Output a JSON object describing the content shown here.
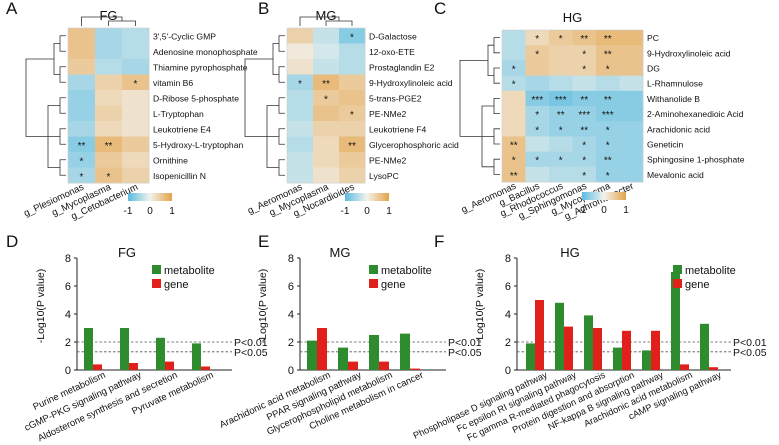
{
  "colors": {
    "low": "#5bbbe0",
    "mid": "#f2f2ec",
    "high": "#e3a34a",
    "metabolite_bar": "#2e8b2e",
    "gene_bar": "#e0201b",
    "frame": "#cfcfcf",
    "dend": "#333333"
  },
  "heatmap_legend": {
    "ticks": [
      "-1",
      "0",
      "1"
    ]
  },
  "chart_data": [
    {
      "type": "heatmap",
      "panel": "A",
      "title": "FG",
      "columns": [
        "g_Plesiomonas",
        "g_Mycoplasma",
        "g_Cetobacterium"
      ],
      "rows": [
        "3',5'-Cyclic GMP",
        "Adenosine monophosphate",
        "Thiamine pyrophosphate",
        "vitamin B6",
        "D-Ribose 5-phosphate",
        "L-Tryptophan",
        "Leukotriene E4",
        "5-Hydroxy-L-tryptophan",
        "Ornithine",
        "Isopenicillin N"
      ],
      "values": [
        [
          0.6,
          -0.5,
          -0.4
        ],
        [
          0.6,
          -0.5,
          -0.4
        ],
        [
          0.5,
          -0.4,
          -0.5
        ],
        [
          -0.5,
          0.4,
          0.6
        ],
        [
          -0.6,
          0.3,
          0.2
        ],
        [
          -0.6,
          0.4,
          0.2
        ],
        [
          -0.5,
          0.3,
          0.2
        ],
        [
          -0.7,
          0.7,
          0.5
        ],
        [
          -0.6,
          0.5,
          0.3
        ],
        [
          -0.5,
          0.6,
          0.4
        ]
      ],
      "stars": [
        [
          "",
          "",
          ""
        ],
        [
          "",
          "",
          ""
        ],
        [
          "",
          "",
          ""
        ],
        [
          "",
          "",
          "*"
        ],
        [
          "",
          "",
          ""
        ],
        [
          "",
          "",
          ""
        ],
        [
          "",
          "",
          ""
        ],
        [
          "**",
          "**",
          ""
        ],
        [
          "*",
          "",
          ""
        ],
        [
          "*",
          "*",
          ""
        ]
      ],
      "legend_range": [
        -1,
        1
      ]
    },
    {
      "type": "heatmap",
      "panel": "B",
      "title": "MG",
      "columns": [
        "g_Aeromonas",
        "g_Mycoplasma",
        "g_Nocardioides"
      ],
      "rows": [
        "D-Galactose",
        "12-oxo-ETE",
        "Prostaglandin E2",
        "9-Hydroxylinoleic acid",
        "5-trans-PGE2",
        "PE-NMe2",
        "Leukotriene F4",
        "Glycerophosphoric acid",
        "PE-NMe2",
        "LysoPC"
      ],
      "values": [
        [
          0.4,
          -0.3,
          -0.7
        ],
        [
          0.1,
          -0.2,
          -0.4
        ],
        [
          0.2,
          -0.3,
          -0.4
        ],
        [
          -0.5,
          0.7,
          0.5
        ],
        [
          -0.4,
          0.5,
          0.6
        ],
        [
          -0.4,
          0.6,
          0.5
        ],
        [
          -0.3,
          0.4,
          0.4
        ],
        [
          -0.4,
          0.3,
          0.7
        ],
        [
          -0.3,
          0.3,
          0.5
        ],
        [
          -0.3,
          0.2,
          0.4
        ]
      ],
      "stars": [
        [
          "",
          "",
          "*"
        ],
        [
          "",
          "",
          ""
        ],
        [
          "",
          "",
          ""
        ],
        [
          "*",
          "**",
          ""
        ],
        [
          "",
          "*",
          ""
        ],
        [
          "",
          "",
          "*"
        ],
        [
          "",
          "",
          ""
        ],
        [
          "",
          "",
          "**"
        ],
        [
          "",
          "",
          ""
        ],
        [
          "",
          "",
          ""
        ]
      ],
      "legend_range": [
        -1,
        1
      ]
    },
    {
      "type": "heatmap",
      "panel": "C",
      "title": "HG",
      "columns": [
        "g_Aeromonas",
        "g_Bacillus",
        "g_Rhodococcus",
        "g_Sphingomonas",
        "g_Mycoplasma",
        "g_Achromobacter"
      ],
      "rows": [
        "PC",
        "9-Hydroxylinoleic acid",
        "DG",
        "L-Rhamnulose",
        "Withanolide B",
        "2-Aminohexanedioic Acid",
        "Arachidonic acid",
        "Geneticin",
        "Sphingosine 1-phosphate",
        "Mevalonic acid"
      ],
      "values": [
        [
          -0.4,
          0.3,
          0.5,
          0.6,
          0.7,
          0.7
        ],
        [
          -0.4,
          0.5,
          0.4,
          0.4,
          0.6,
          0.6
        ],
        [
          -0.5,
          0.5,
          0.4,
          0.4,
          0.6,
          0.6
        ],
        [
          -0.4,
          -0.5,
          -0.4,
          -0.3,
          -0.4,
          -0.3
        ],
        [
          0.3,
          -0.7,
          -0.8,
          -0.7,
          -0.7,
          -0.7
        ],
        [
          0.3,
          -0.5,
          -0.6,
          -0.6,
          -0.7,
          -0.7
        ],
        [
          0.3,
          -0.5,
          -0.6,
          -0.6,
          -0.6,
          -0.6
        ],
        [
          0.6,
          -0.3,
          -0.4,
          -0.5,
          -0.6,
          -0.6
        ],
        [
          0.6,
          -0.5,
          -0.5,
          -0.5,
          -0.6,
          -0.6
        ],
        [
          0.6,
          -0.3,
          -0.4,
          -0.4,
          -0.6,
          -0.6
        ]
      ],
      "stars": [
        [
          "",
          "*",
          "*",
          "**",
          "**",
          ""
        ],
        [
          "",
          "*",
          "",
          "*",
          "**",
          ""
        ],
        [
          "*",
          "",
          "",
          "*",
          "*",
          ""
        ],
        [
          "*",
          "",
          "",
          "",
          "",
          ""
        ],
        [
          "",
          "***",
          "***",
          "**",
          "**",
          ""
        ],
        [
          "",
          "*",
          "**",
          "***",
          "***",
          ""
        ],
        [
          "",
          "*",
          "*",
          "**",
          "*",
          ""
        ],
        [
          "**",
          "",
          "",
          "*",
          "*",
          ""
        ],
        [
          "*",
          "*",
          "*",
          "*",
          "**",
          ""
        ],
        [
          "**",
          "",
          "",
          "*",
          "*",
          ""
        ]
      ],
      "legend_range": [
        -1,
        1
      ]
    },
    {
      "type": "bar",
      "panel": "D",
      "title": "FG",
      "categories": [
        "Purine metabolism",
        "cGMP-PKG signaling pathway",
        "Aldosterone synthesis and secretion",
        "Pyruvate metabolism"
      ],
      "series": [
        {
          "name": "metabolite",
          "values": [
            3.0,
            3.0,
            2.3,
            1.9
          ]
        },
        {
          "name": "gene",
          "values": [
            0.4,
            0.5,
            0.6,
            0.25
          ]
        }
      ],
      "ylabel": "-Log10(P value)",
      "ylim": [
        0,
        8
      ],
      "yticks": [
        "0",
        "2",
        "4",
        "6",
        "8"
      ],
      "thresholds": [
        {
          "value": 2,
          "label": "P<0.01"
        },
        {
          "value": 1.3,
          "label": "P<0.05"
        }
      ]
    },
    {
      "type": "bar",
      "panel": "E",
      "title": "MG",
      "categories": [
        "Arachidonic acid metabolism",
        "PPAR signaling pathway",
        "Glycerophospholipid metabolism",
        "Choline metabolism in cancer"
      ],
      "series": [
        {
          "name": "metabolite",
          "values": [
            2.1,
            1.6,
            2.5,
            2.6
          ]
        },
        {
          "name": "gene",
          "values": [
            3.0,
            0.6,
            0.6,
            0.1
          ]
        }
      ],
      "ylabel": "-Log10(P value)",
      "ylim": [
        0,
        8
      ],
      "yticks": [
        "0",
        "2",
        "4",
        "6",
        "8"
      ],
      "thresholds": [
        {
          "value": 2,
          "label": "P<0.01"
        },
        {
          "value": 1.3,
          "label": "P<0.05"
        }
      ]
    },
    {
      "type": "bar",
      "panel": "F",
      "title": "HG",
      "categories": [
        "Phospholipase D signaling pathway",
        "Fc epsilon RI signaling pathway",
        "Fc gamma R-mediated phagocytosis",
        "Protein digestion and absorption",
        "NF-kappa B signaling pathway",
        "Arachidonic acid metabolism",
        "cAMP signaling pathway"
      ],
      "series": [
        {
          "name": "metabolite",
          "values": [
            1.9,
            4.8,
            3.9,
            1.6,
            1.4,
            7.0,
            3.3
          ]
        },
        {
          "name": "gene",
          "values": [
            5.0,
            3.1,
            3.0,
            2.8,
            2.8,
            0.4,
            0.2
          ]
        }
      ],
      "ylabel": "-Log10(P value)",
      "ylim": [
        0,
        8
      ],
      "yticks": [
        "0",
        "2",
        "4",
        "6",
        "8"
      ],
      "thresholds": [
        {
          "value": 2,
          "label": "P<0.01"
        },
        {
          "value": 1.3,
          "label": "P<0.05"
        }
      ]
    }
  ]
}
